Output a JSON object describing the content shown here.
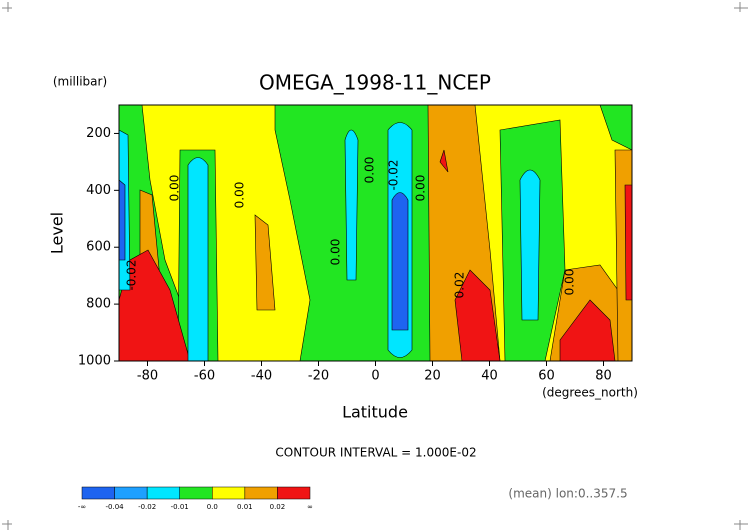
{
  "chart_data": {
    "type": "contour",
    "title": "OMEGA_1998-11_NCEP",
    "y_unit": "(millibar)",
    "ylabel": "Level",
    "xlabel": "Latitude",
    "x_unit": "(degrees_north)",
    "xlim": [
      -90,
      90
    ],
    "xticks": [
      -80,
      -60,
      -40,
      -20,
      0,
      20,
      40,
      60,
      80
    ],
    "ylim": [
      1000,
      100
    ],
    "yticks": [
      200,
      400,
      600,
      800,
      1000
    ],
    "contour_labels": [
      "-0.02",
      "0.00",
      "0.00",
      "0.00",
      "0.00",
      "-0.02",
      "0.00",
      "0.02",
      "0.00"
    ],
    "contour_interval": "CONTOUR INTERVAL = 1.000E-02",
    "footnote": "(mean) lon:0..357.5",
    "colorbar": {
      "colors": [
        "#1e64f0",
        "#1ea0ff",
        "#00e6ff",
        "#22e622",
        "#ffff00",
        "#f0a000",
        "#f01414"
      ],
      "labels": [
        "-∞",
        "-0.04",
        "-0.02",
        "-0.01",
        "0.0",
        "0.01",
        "0.02",
        "∞"
      ]
    }
  }
}
